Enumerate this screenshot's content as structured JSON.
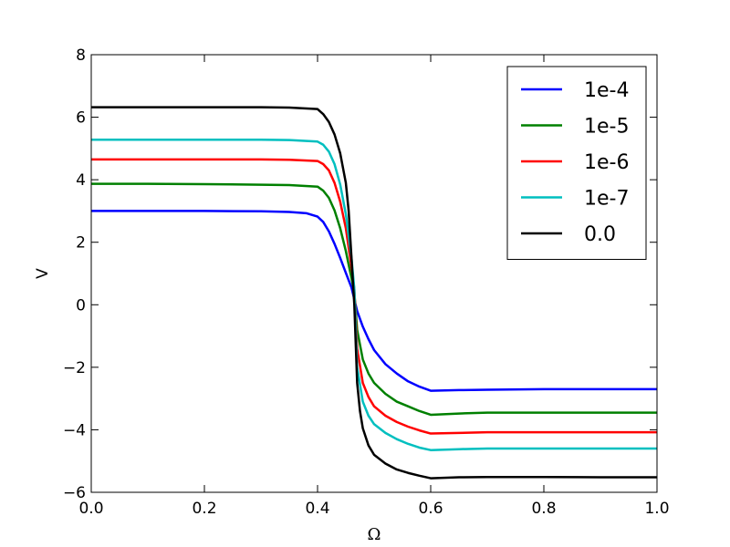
{
  "chart_data": {
    "type": "line",
    "title": "",
    "xlabel": "Ω",
    "ylabel": "V",
    "xlim": [
      0.0,
      1.0
    ],
    "ylim": [
      -6,
      8
    ],
    "x_ticks": [
      0.0,
      0.2,
      0.4,
      0.6,
      0.8,
      1.0
    ],
    "x_tick_labels": [
      "0.0",
      "0.2",
      "0.4",
      "0.6",
      "0.8",
      "1.0"
    ],
    "y_ticks": [
      -6,
      -4,
      -2,
      0,
      2,
      4,
      6,
      8
    ],
    "y_tick_labels": [
      "−6",
      "−4",
      "−2",
      "0",
      "2",
      "4",
      "6",
      "8"
    ],
    "grid": false,
    "legend_position": "top-right",
    "series": [
      {
        "name": "1e-4",
        "color": "#0000ff",
        "points": [
          [
            0.0,
            3.0
          ],
          [
            0.1,
            3.0
          ],
          [
            0.2,
            3.0
          ],
          [
            0.3,
            2.99
          ],
          [
            0.35,
            2.97
          ],
          [
            0.38,
            2.93
          ],
          [
            0.4,
            2.82
          ],
          [
            0.41,
            2.65
          ],
          [
            0.42,
            2.35
          ],
          [
            0.43,
            1.95
          ],
          [
            0.44,
            1.5
          ],
          [
            0.45,
            1.02
          ],
          [
            0.46,
            0.55
          ],
          [
            0.47,
            -0.2
          ],
          [
            0.48,
            -0.7
          ],
          [
            0.49,
            -1.1
          ],
          [
            0.5,
            -1.45
          ],
          [
            0.52,
            -1.9
          ],
          [
            0.54,
            -2.2
          ],
          [
            0.56,
            -2.45
          ],
          [
            0.58,
            -2.62
          ],
          [
            0.6,
            -2.75
          ],
          [
            0.65,
            -2.73
          ],
          [
            0.7,
            -2.72
          ],
          [
            0.8,
            -2.7
          ],
          [
            0.9,
            -2.7
          ],
          [
            1.0,
            -2.7
          ]
        ]
      },
      {
        "name": "1e-5",
        "color": "#008000",
        "points": [
          [
            0.0,
            3.87
          ],
          [
            0.1,
            3.87
          ],
          [
            0.2,
            3.86
          ],
          [
            0.3,
            3.84
          ],
          [
            0.35,
            3.83
          ],
          [
            0.4,
            3.78
          ],
          [
            0.41,
            3.65
          ],
          [
            0.42,
            3.42
          ],
          [
            0.43,
            3.02
          ],
          [
            0.44,
            2.45
          ],
          [
            0.45,
            1.72
          ],
          [
            0.46,
            0.85
          ],
          [
            0.465,
            0.4
          ],
          [
            0.47,
            -0.8
          ],
          [
            0.48,
            -1.75
          ],
          [
            0.49,
            -2.2
          ],
          [
            0.5,
            -2.5
          ],
          [
            0.52,
            -2.85
          ],
          [
            0.54,
            -3.1
          ],
          [
            0.56,
            -3.25
          ],
          [
            0.58,
            -3.4
          ],
          [
            0.6,
            -3.52
          ],
          [
            0.65,
            -3.48
          ],
          [
            0.7,
            -3.45
          ],
          [
            0.8,
            -3.45
          ],
          [
            0.9,
            -3.45
          ],
          [
            1.0,
            -3.45
          ]
        ]
      },
      {
        "name": "1e-6",
        "color": "#ff0000",
        "points": [
          [
            0.0,
            4.65
          ],
          [
            0.1,
            4.65
          ],
          [
            0.2,
            4.65
          ],
          [
            0.3,
            4.65
          ],
          [
            0.35,
            4.64
          ],
          [
            0.4,
            4.6
          ],
          [
            0.41,
            4.5
          ],
          [
            0.42,
            4.3
          ],
          [
            0.43,
            3.9
          ],
          [
            0.44,
            3.3
          ],
          [
            0.45,
            2.45
          ],
          [
            0.46,
            1.2
          ],
          [
            0.465,
            0.5
          ],
          [
            0.47,
            -1.4
          ],
          [
            0.48,
            -2.5
          ],
          [
            0.49,
            -2.95
          ],
          [
            0.5,
            -3.25
          ],
          [
            0.52,
            -3.55
          ],
          [
            0.54,
            -3.75
          ],
          [
            0.56,
            -3.9
          ],
          [
            0.58,
            -4.02
          ],
          [
            0.6,
            -4.12
          ],
          [
            0.65,
            -4.1
          ],
          [
            0.7,
            -4.08
          ],
          [
            0.8,
            -4.08
          ],
          [
            0.9,
            -4.08
          ],
          [
            1.0,
            -4.08
          ]
        ]
      },
      {
        "name": "1e-7",
        "color": "#00bfbf",
        "points": [
          [
            0.0,
            5.28
          ],
          [
            0.1,
            5.28
          ],
          [
            0.2,
            5.28
          ],
          [
            0.3,
            5.28
          ],
          [
            0.35,
            5.27
          ],
          [
            0.4,
            5.22
          ],
          [
            0.41,
            5.12
          ],
          [
            0.42,
            4.9
          ],
          [
            0.43,
            4.5
          ],
          [
            0.44,
            3.85
          ],
          [
            0.45,
            2.9
          ],
          [
            0.46,
            1.5
          ],
          [
            0.465,
            0.5
          ],
          [
            0.47,
            -2.0
          ],
          [
            0.48,
            -3.1
          ],
          [
            0.49,
            -3.55
          ],
          [
            0.5,
            -3.82
          ],
          [
            0.52,
            -4.1
          ],
          [
            0.54,
            -4.3
          ],
          [
            0.56,
            -4.45
          ],
          [
            0.58,
            -4.57
          ],
          [
            0.6,
            -4.65
          ],
          [
            0.65,
            -4.62
          ],
          [
            0.7,
            -4.6
          ],
          [
            0.8,
            -4.6
          ],
          [
            0.9,
            -4.6
          ],
          [
            1.0,
            -4.6
          ]
        ]
      },
      {
        "name": "0.0",
        "color": "#000000",
        "points": [
          [
            0.0,
            6.32
          ],
          [
            0.1,
            6.32
          ],
          [
            0.2,
            6.32
          ],
          [
            0.3,
            6.32
          ],
          [
            0.35,
            6.31
          ],
          [
            0.4,
            6.26
          ],
          [
            0.41,
            6.1
          ],
          [
            0.42,
            5.85
          ],
          [
            0.43,
            5.45
          ],
          [
            0.44,
            4.85
          ],
          [
            0.45,
            3.9
          ],
          [
            0.455,
            3.0
          ],
          [
            0.46,
            1.5
          ],
          [
            0.465,
            0.0
          ],
          [
            0.47,
            -2.5
          ],
          [
            0.475,
            -3.4
          ],
          [
            0.48,
            -3.95
          ],
          [
            0.49,
            -4.5
          ],
          [
            0.5,
            -4.8
          ],
          [
            0.52,
            -5.08
          ],
          [
            0.54,
            -5.27
          ],
          [
            0.56,
            -5.38
          ],
          [
            0.58,
            -5.47
          ],
          [
            0.6,
            -5.55
          ],
          [
            0.65,
            -5.52
          ],
          [
            0.7,
            -5.51
          ],
          [
            0.8,
            -5.51
          ],
          [
            0.9,
            -5.52
          ],
          [
            1.0,
            -5.52
          ]
        ]
      }
    ]
  }
}
